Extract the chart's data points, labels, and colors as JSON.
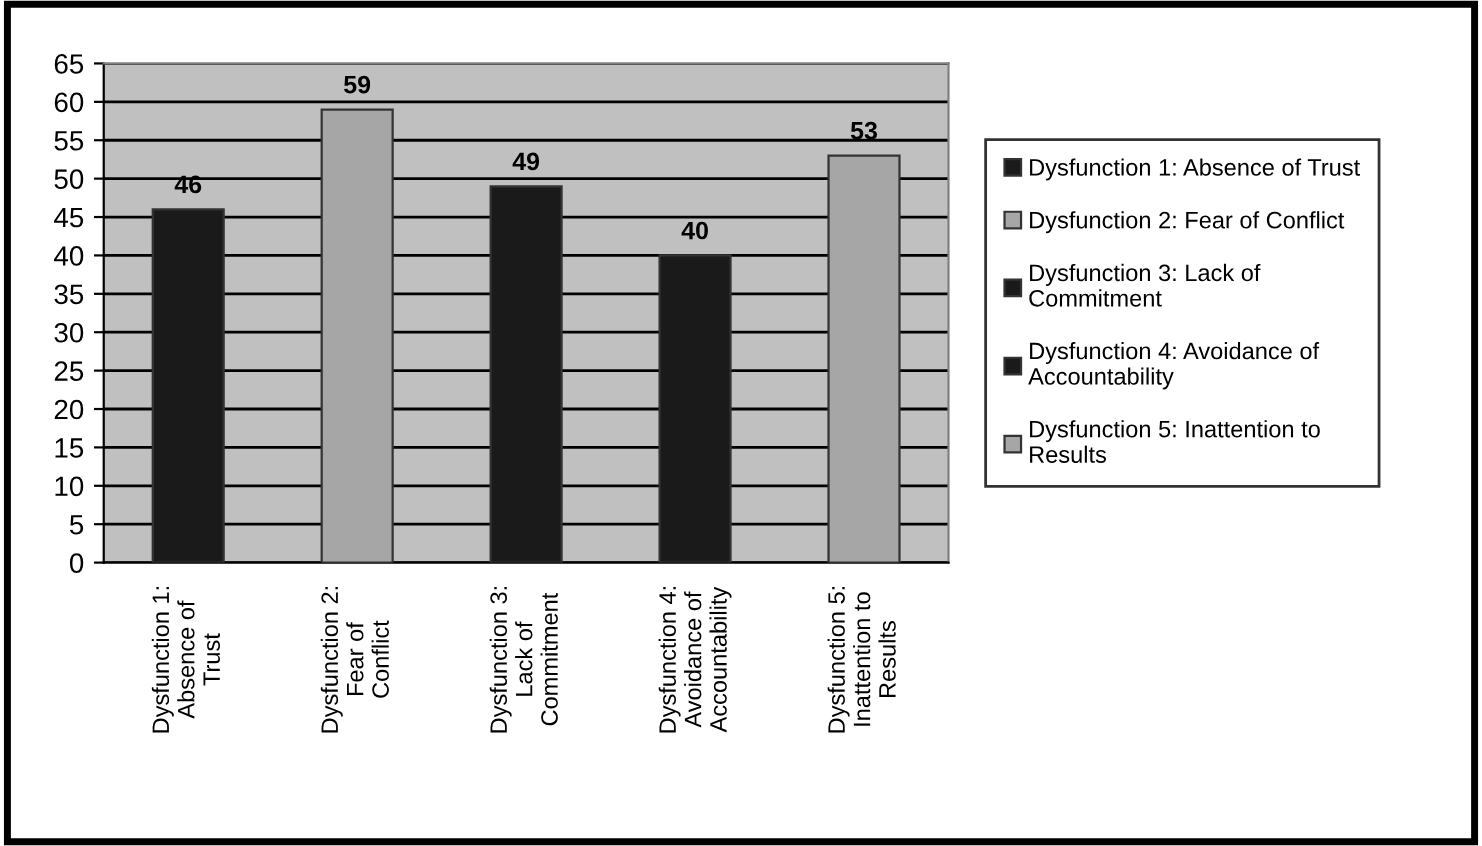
{
  "chart_data": {
    "type": "bar",
    "categories": [
      "Dysfunction 1:\nAbsence of\nTrust",
      "Dysfunction 2:\nFear of\nConflict",
      "Dysfunction 3:\nLack of\nCommitment",
      "Dysfunction 4:\nAvoidance of\nAccountability",
      "Dysfunction 5:\nInattention to\nResults"
    ],
    "series": [
      {
        "name": "Dysfunction 1: Absence of Trust",
        "color": "#1a1a1a",
        "values": [
          46,
          null,
          null,
          null,
          null
        ]
      },
      {
        "name": "Dysfunction 2: Fear of Conflict",
        "color": "#a6a6a6",
        "values": [
          null,
          59,
          null,
          null,
          null
        ]
      },
      {
        "name": "Dysfunction 3: Lack of\nCommitment",
        "color": "#1a1a1a",
        "values": [
          null,
          null,
          49,
          null,
          null
        ]
      },
      {
        "name": "Dysfunction 4: Avoidance of\nAccountability",
        "color": "#1a1a1a",
        "values": [
          null,
          null,
          null,
          40,
          null
        ]
      },
      {
        "name": "Dysfunction 5: Inattention to\nResults",
        "color": "#a6a6a6",
        "values": [
          null,
          null,
          null,
          null,
          53
        ]
      }
    ],
    "ylim": [
      0,
      65
    ],
    "yticks": [
      0,
      5,
      10,
      15,
      20,
      25,
      30,
      35,
      40,
      45,
      50,
      55,
      60,
      65
    ],
    "grid": "y",
    "legend": "right",
    "data_labels": true
  }
}
